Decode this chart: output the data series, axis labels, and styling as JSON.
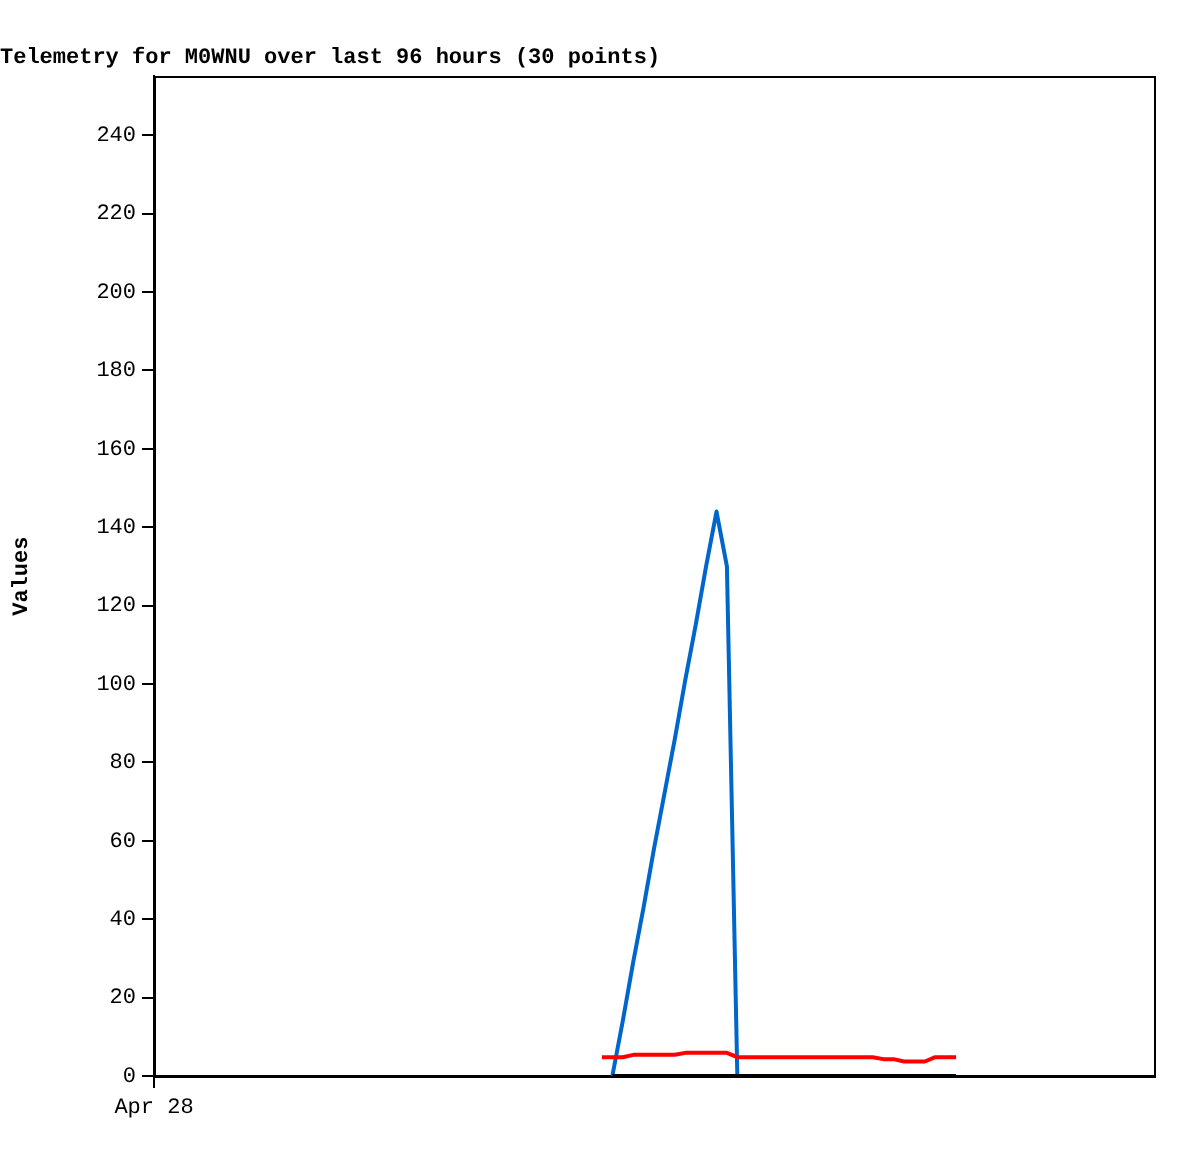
{
  "chart_data": {
    "type": "line",
    "title": "Telemetry for M0WNU over last 96 hours (30 points)",
    "ylabel": "Values",
    "categories": [
      "Apr 28",
      null,
      null,
      null,
      null,
      null,
      null,
      null,
      null,
      null,
      null,
      null,
      null,
      null,
      null,
      null,
      null,
      null,
      null,
      null,
      null,
      null,
      null,
      null,
      null,
      null,
      null,
      null,
      null,
      null,
      null,
      null,
      null,
      null,
      null,
      null,
      null,
      null,
      null,
      null,
      null,
      null,
      null,
      null,
      null,
      null,
      null,
      null,
      null,
      null,
      null,
      null,
      null,
      null,
      null,
      null,
      null,
      null,
      null,
      null,
      null,
      null,
      null,
      null,
      null,
      null,
      null,
      null,
      null,
      null,
      null,
      null,
      null,
      null,
      null,
      null,
      null,
      null,
      null,
      null,
      null,
      null,
      null,
      null,
      null,
      null,
      null,
      null,
      null,
      null,
      null,
      null,
      null,
      null,
      null,
      null,
      null
    ],
    "ylim": [
      0,
      255
    ],
    "yticks": [
      0,
      20,
      40,
      60,
      80,
      100,
      120,
      140,
      160,
      180,
      200,
      220,
      240
    ],
    "series": [
      {
        "color": "#000000",
        "values": [
          null,
          null,
          null,
          null,
          null,
          null,
          null,
          null,
          null,
          null,
          null,
          null,
          null,
          null,
          null,
          null,
          null,
          null,
          null,
          null,
          null,
          null,
          null,
          null,
          null,
          null,
          null,
          null,
          null,
          null,
          null,
          null,
          null,
          null,
          null,
          null,
          null,
          null,
          null,
          null,
          null,
          null,
          null,
          null,
          0,
          0,
          0,
          0,
          0,
          0,
          0,
          0,
          0,
          0,
          0,
          0,
          0,
          0,
          0,
          0,
          0,
          0,
          0,
          0,
          0,
          0,
          0,
          0,
          0,
          0,
          0,
          0,
          0,
          0,
          0,
          0,
          0,
          0,
          null,
          null,
          null,
          null,
          null,
          null,
          null,
          null,
          null,
          null,
          null,
          null,
          null,
          null,
          null,
          null,
          null,
          null,
          null
        ]
      },
      {
        "color": "#ff0000",
        "values": [
          null,
          null,
          null,
          null,
          null,
          null,
          null,
          null,
          null,
          null,
          null,
          null,
          null,
          null,
          null,
          null,
          null,
          null,
          null,
          null,
          null,
          null,
          null,
          null,
          null,
          null,
          null,
          null,
          null,
          null,
          null,
          null,
          null,
          null,
          null,
          null,
          null,
          null,
          null,
          null,
          null,
          null,
          null,
          4.8,
          4.8,
          4.8,
          5.4,
          5.4,
          5.4,
          5.4,
          5.4,
          5.9,
          5.9,
          5.9,
          5.9,
          5.9,
          4.8,
          4.8,
          4.8,
          4.8,
          4.8,
          4.8,
          4.8,
          4.8,
          4.8,
          4.8,
          4.8,
          4.8,
          4.8,
          4.8,
          4.3,
          4.3,
          3.7,
          3.7,
          3.7,
          4.8,
          4.8,
          4.8,
          null,
          null,
          null,
          null,
          null,
          null,
          null,
          null,
          null,
          null,
          null,
          null,
          null,
          null,
          null,
          null,
          null,
          null,
          null
        ]
      },
      {
        "color": "#0066cc",
        "values": [
          null,
          null,
          null,
          null,
          null,
          null,
          null,
          null,
          null,
          null,
          null,
          null,
          null,
          null,
          null,
          null,
          null,
          null,
          null,
          null,
          null,
          null,
          null,
          null,
          null,
          null,
          null,
          null,
          null,
          null,
          null,
          null,
          null,
          null,
          null,
          null,
          null,
          null,
          null,
          null,
          null,
          null,
          null,
          null,
          0,
          14,
          29,
          43,
          58,
          72,
          86,
          101,
          115,
          130,
          144,
          130,
          0,
          null,
          null,
          null,
          null,
          null,
          null,
          null,
          null,
          null,
          null,
          null,
          null,
          null,
          null,
          null,
          null,
          null,
          null,
          null,
          null,
          null,
          null,
          null,
          null,
          null,
          null,
          null,
          null,
          null,
          null,
          null,
          null,
          null,
          null,
          null,
          null,
          null,
          null,
          null,
          null
        ]
      }
    ]
  }
}
